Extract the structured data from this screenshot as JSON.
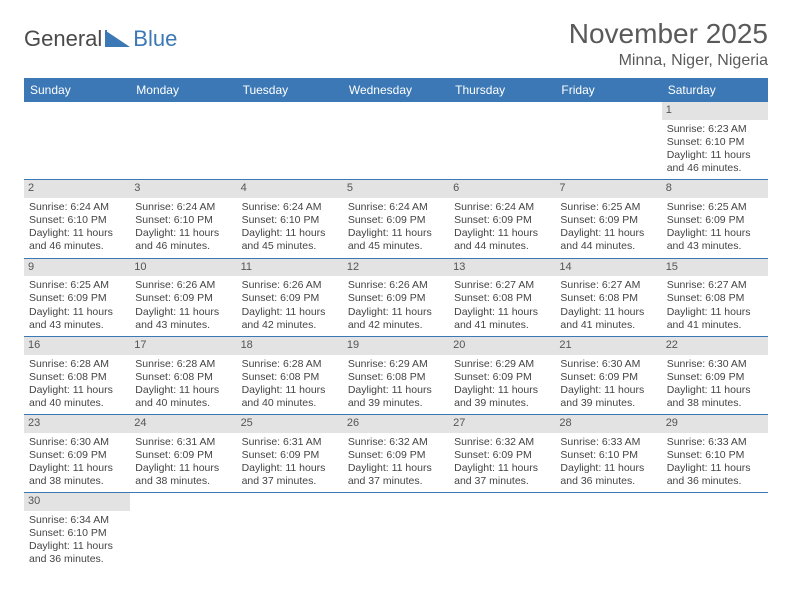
{
  "logo": {
    "part1": "General",
    "part2": "Blue"
  },
  "header": {
    "monthTitle": "November 2025",
    "location": "Minna, Niger, Nigeria"
  },
  "colors": {
    "headerBg": "#3b78b5",
    "dayNumBg": "#e3e3e3",
    "text": "#444444",
    "border": "#3b78b5"
  },
  "dayNames": [
    "Sunday",
    "Monday",
    "Tuesday",
    "Wednesday",
    "Thursday",
    "Friday",
    "Saturday"
  ],
  "weeks": [
    [
      null,
      null,
      null,
      null,
      null,
      null,
      {
        "n": "1",
        "sunrise": "Sunrise: 6:23 AM",
        "sunset": "Sunset: 6:10 PM",
        "daylight1": "Daylight: 11 hours",
        "daylight2": "and 46 minutes."
      }
    ],
    [
      {
        "n": "2",
        "sunrise": "Sunrise: 6:24 AM",
        "sunset": "Sunset: 6:10 PM",
        "daylight1": "Daylight: 11 hours",
        "daylight2": "and 46 minutes."
      },
      {
        "n": "3",
        "sunrise": "Sunrise: 6:24 AM",
        "sunset": "Sunset: 6:10 PM",
        "daylight1": "Daylight: 11 hours",
        "daylight2": "and 46 minutes."
      },
      {
        "n": "4",
        "sunrise": "Sunrise: 6:24 AM",
        "sunset": "Sunset: 6:10 PM",
        "daylight1": "Daylight: 11 hours",
        "daylight2": "and 45 minutes."
      },
      {
        "n": "5",
        "sunrise": "Sunrise: 6:24 AM",
        "sunset": "Sunset: 6:09 PM",
        "daylight1": "Daylight: 11 hours",
        "daylight2": "and 45 minutes."
      },
      {
        "n": "6",
        "sunrise": "Sunrise: 6:24 AM",
        "sunset": "Sunset: 6:09 PM",
        "daylight1": "Daylight: 11 hours",
        "daylight2": "and 44 minutes."
      },
      {
        "n": "7",
        "sunrise": "Sunrise: 6:25 AM",
        "sunset": "Sunset: 6:09 PM",
        "daylight1": "Daylight: 11 hours",
        "daylight2": "and 44 minutes."
      },
      {
        "n": "8",
        "sunrise": "Sunrise: 6:25 AM",
        "sunset": "Sunset: 6:09 PM",
        "daylight1": "Daylight: 11 hours",
        "daylight2": "and 43 minutes."
      }
    ],
    [
      {
        "n": "9",
        "sunrise": "Sunrise: 6:25 AM",
        "sunset": "Sunset: 6:09 PM",
        "daylight1": "Daylight: 11 hours",
        "daylight2": "and 43 minutes."
      },
      {
        "n": "10",
        "sunrise": "Sunrise: 6:26 AM",
        "sunset": "Sunset: 6:09 PM",
        "daylight1": "Daylight: 11 hours",
        "daylight2": "and 43 minutes."
      },
      {
        "n": "11",
        "sunrise": "Sunrise: 6:26 AM",
        "sunset": "Sunset: 6:09 PM",
        "daylight1": "Daylight: 11 hours",
        "daylight2": "and 42 minutes."
      },
      {
        "n": "12",
        "sunrise": "Sunrise: 6:26 AM",
        "sunset": "Sunset: 6:09 PM",
        "daylight1": "Daylight: 11 hours",
        "daylight2": "and 42 minutes."
      },
      {
        "n": "13",
        "sunrise": "Sunrise: 6:27 AM",
        "sunset": "Sunset: 6:08 PM",
        "daylight1": "Daylight: 11 hours",
        "daylight2": "and 41 minutes."
      },
      {
        "n": "14",
        "sunrise": "Sunrise: 6:27 AM",
        "sunset": "Sunset: 6:08 PM",
        "daylight1": "Daylight: 11 hours",
        "daylight2": "and 41 minutes."
      },
      {
        "n": "15",
        "sunrise": "Sunrise: 6:27 AM",
        "sunset": "Sunset: 6:08 PM",
        "daylight1": "Daylight: 11 hours",
        "daylight2": "and 41 minutes."
      }
    ],
    [
      {
        "n": "16",
        "sunrise": "Sunrise: 6:28 AM",
        "sunset": "Sunset: 6:08 PM",
        "daylight1": "Daylight: 11 hours",
        "daylight2": "and 40 minutes."
      },
      {
        "n": "17",
        "sunrise": "Sunrise: 6:28 AM",
        "sunset": "Sunset: 6:08 PM",
        "daylight1": "Daylight: 11 hours",
        "daylight2": "and 40 minutes."
      },
      {
        "n": "18",
        "sunrise": "Sunrise: 6:28 AM",
        "sunset": "Sunset: 6:08 PM",
        "daylight1": "Daylight: 11 hours",
        "daylight2": "and 40 minutes."
      },
      {
        "n": "19",
        "sunrise": "Sunrise: 6:29 AM",
        "sunset": "Sunset: 6:08 PM",
        "daylight1": "Daylight: 11 hours",
        "daylight2": "and 39 minutes."
      },
      {
        "n": "20",
        "sunrise": "Sunrise: 6:29 AM",
        "sunset": "Sunset: 6:09 PM",
        "daylight1": "Daylight: 11 hours",
        "daylight2": "and 39 minutes."
      },
      {
        "n": "21",
        "sunrise": "Sunrise: 6:30 AM",
        "sunset": "Sunset: 6:09 PM",
        "daylight1": "Daylight: 11 hours",
        "daylight2": "and 39 minutes."
      },
      {
        "n": "22",
        "sunrise": "Sunrise: 6:30 AM",
        "sunset": "Sunset: 6:09 PM",
        "daylight1": "Daylight: 11 hours",
        "daylight2": "and 38 minutes."
      }
    ],
    [
      {
        "n": "23",
        "sunrise": "Sunrise: 6:30 AM",
        "sunset": "Sunset: 6:09 PM",
        "daylight1": "Daylight: 11 hours",
        "daylight2": "and 38 minutes."
      },
      {
        "n": "24",
        "sunrise": "Sunrise: 6:31 AM",
        "sunset": "Sunset: 6:09 PM",
        "daylight1": "Daylight: 11 hours",
        "daylight2": "and 38 minutes."
      },
      {
        "n": "25",
        "sunrise": "Sunrise: 6:31 AM",
        "sunset": "Sunset: 6:09 PM",
        "daylight1": "Daylight: 11 hours",
        "daylight2": "and 37 minutes."
      },
      {
        "n": "26",
        "sunrise": "Sunrise: 6:32 AM",
        "sunset": "Sunset: 6:09 PM",
        "daylight1": "Daylight: 11 hours",
        "daylight2": "and 37 minutes."
      },
      {
        "n": "27",
        "sunrise": "Sunrise: 6:32 AM",
        "sunset": "Sunset: 6:09 PM",
        "daylight1": "Daylight: 11 hours",
        "daylight2": "and 37 minutes."
      },
      {
        "n": "28",
        "sunrise": "Sunrise: 6:33 AM",
        "sunset": "Sunset: 6:10 PM",
        "daylight1": "Daylight: 11 hours",
        "daylight2": "and 36 minutes."
      },
      {
        "n": "29",
        "sunrise": "Sunrise: 6:33 AM",
        "sunset": "Sunset: 6:10 PM",
        "daylight1": "Daylight: 11 hours",
        "daylight2": "and 36 minutes."
      }
    ],
    [
      {
        "n": "30",
        "sunrise": "Sunrise: 6:34 AM",
        "sunset": "Sunset: 6:10 PM",
        "daylight1": "Daylight: 11 hours",
        "daylight2": "and 36 minutes."
      },
      null,
      null,
      null,
      null,
      null,
      null
    ]
  ]
}
